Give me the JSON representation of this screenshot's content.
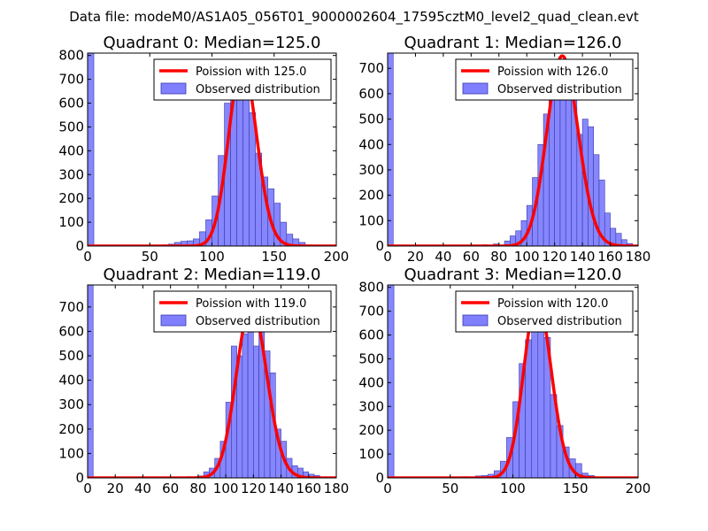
{
  "suptitle": "Data file: modeM0/AS1A05_056T01_9000002604_17595cztM0_level2_quad_clean.evt",
  "colors": {
    "bars": "#7f7fff",
    "bar_edge": "#3a3aa8",
    "fit": "#ff0000",
    "axes": "#000000",
    "background": "#ffffff"
  },
  "legend_hist_label": "Observed distribution",
  "chart_data": [
    {
      "type": "bar",
      "title": "Quadrant 0: Median=125.0",
      "fit_label": "Poission with 125.0",
      "median": 125.0,
      "xlim": [
        0,
        200
      ],
      "ylim": [
        0,
        810
      ],
      "xticks": [
        0,
        50,
        100,
        150,
        200
      ],
      "yticks": [
        0,
        100,
        200,
        300,
        400,
        500,
        600,
        700,
        800
      ],
      "bin_width": 5,
      "bins": [
        {
          "x": 0,
          "y": 810
        },
        {
          "x": 60,
          "y": 5
        },
        {
          "x": 65,
          "y": 8
        },
        {
          "x": 70,
          "y": 15
        },
        {
          "x": 75,
          "y": 20
        },
        {
          "x": 80,
          "y": 22
        },
        {
          "x": 85,
          "y": 30
        },
        {
          "x": 90,
          "y": 60
        },
        {
          "x": 95,
          "y": 110
        },
        {
          "x": 100,
          "y": 210
        },
        {
          "x": 105,
          "y": 380
        },
        {
          "x": 110,
          "y": 600
        },
        {
          "x": 115,
          "y": 700
        },
        {
          "x": 120,
          "y": 680
        },
        {
          "x": 125,
          "y": 740
        },
        {
          "x": 130,
          "y": 560
        },
        {
          "x": 135,
          "y": 390
        },
        {
          "x": 140,
          "y": 290
        },
        {
          "x": 145,
          "y": 240
        },
        {
          "x": 150,
          "y": 180
        },
        {
          "x": 155,
          "y": 100
        },
        {
          "x": 160,
          "y": 50
        },
        {
          "x": 165,
          "y": 30
        },
        {
          "x": 170,
          "y": 15
        },
        {
          "x": 175,
          "y": 5
        }
      ]
    },
    {
      "type": "bar",
      "title": "Quadrant 1: Median=126.0",
      "fit_label": "Poission with 126.0",
      "median": 126.0,
      "xlim": [
        0,
        180
      ],
      "ylim": [
        0,
        760
      ],
      "xticks": [
        0,
        20,
        40,
        60,
        80,
        100,
        120,
        140,
        160,
        180
      ],
      "yticks": [
        0,
        100,
        200,
        300,
        400,
        500,
        600,
        700
      ],
      "bin_width": 4,
      "bins": [
        {
          "x": 0,
          "y": 760
        },
        {
          "x": 68,
          "y": 5
        },
        {
          "x": 76,
          "y": 8
        },
        {
          "x": 84,
          "y": 20
        },
        {
          "x": 88,
          "y": 40
        },
        {
          "x": 92,
          "y": 60
        },
        {
          "x": 96,
          "y": 100
        },
        {
          "x": 100,
          "y": 160
        },
        {
          "x": 104,
          "y": 270
        },
        {
          "x": 108,
          "y": 400
        },
        {
          "x": 112,
          "y": 520
        },
        {
          "x": 116,
          "y": 600
        },
        {
          "x": 120,
          "y": 610
        },
        {
          "x": 124,
          "y": 720
        },
        {
          "x": 128,
          "y": 690
        },
        {
          "x": 132,
          "y": 650
        },
        {
          "x": 136,
          "y": 440
        },
        {
          "x": 140,
          "y": 500
        },
        {
          "x": 144,
          "y": 470
        },
        {
          "x": 148,
          "y": 360
        },
        {
          "x": 152,
          "y": 260
        },
        {
          "x": 156,
          "y": 130
        },
        {
          "x": 160,
          "y": 70
        },
        {
          "x": 164,
          "y": 50
        },
        {
          "x": 168,
          "y": 25
        },
        {
          "x": 172,
          "y": 10
        }
      ]
    },
    {
      "type": "bar",
      "title": "Quadrant 2: Median=119.0",
      "fit_label": "Poission with 119.0",
      "median": 119.0,
      "xlim": [
        0,
        180
      ],
      "ylim": [
        0,
        790
      ],
      "xticks": [
        0,
        20,
        40,
        60,
        80,
        100,
        120,
        140,
        160,
        180
      ],
      "yticks": [
        0,
        100,
        200,
        300,
        400,
        500,
        600,
        700
      ],
      "bin_width": 4,
      "bins": [
        {
          "x": 0,
          "y": 790
        },
        {
          "x": 72,
          "y": 5
        },
        {
          "x": 80,
          "y": 8
        },
        {
          "x": 84,
          "y": 25
        },
        {
          "x": 88,
          "y": 40
        },
        {
          "x": 92,
          "y": 80
        },
        {
          "x": 96,
          "y": 150
        },
        {
          "x": 100,
          "y": 310
        },
        {
          "x": 104,
          "y": 540
        },
        {
          "x": 108,
          "y": 500
        },
        {
          "x": 112,
          "y": 590
        },
        {
          "x": 116,
          "y": 680
        },
        {
          "x": 120,
          "y": 540
        },
        {
          "x": 124,
          "y": 600
        },
        {
          "x": 128,
          "y": 520
        },
        {
          "x": 132,
          "y": 430
        },
        {
          "x": 136,
          "y": 200
        },
        {
          "x": 140,
          "y": 150
        },
        {
          "x": 144,
          "y": 80
        },
        {
          "x": 148,
          "y": 50
        },
        {
          "x": 152,
          "y": 40
        },
        {
          "x": 156,
          "y": 25
        },
        {
          "x": 160,
          "y": 15
        },
        {
          "x": 164,
          "y": 10
        }
      ]
    },
    {
      "type": "bar",
      "title": "Quadrant 3: Median=120.0",
      "fit_label": "Poission with 120.0",
      "median": 120.0,
      "xlim": [
        0,
        200
      ],
      "ylim": [
        0,
        810
      ],
      "xticks": [
        0,
        50,
        100,
        150,
        200
      ],
      "yticks": [
        0,
        100,
        200,
        300,
        400,
        500,
        600,
        700,
        800
      ],
      "bin_width": 5,
      "bins": [
        {
          "x": 0,
          "y": 810
        },
        {
          "x": 60,
          "y": 5
        },
        {
          "x": 70,
          "y": 8
        },
        {
          "x": 75,
          "y": 10
        },
        {
          "x": 80,
          "y": 15
        },
        {
          "x": 85,
          "y": 30
        },
        {
          "x": 90,
          "y": 70
        },
        {
          "x": 95,
          "y": 170
        },
        {
          "x": 100,
          "y": 320
        },
        {
          "x": 105,
          "y": 480
        },
        {
          "x": 110,
          "y": 580
        },
        {
          "x": 115,
          "y": 680
        },
        {
          "x": 120,
          "y": 720
        },
        {
          "x": 125,
          "y": 590
        },
        {
          "x": 130,
          "y": 350
        },
        {
          "x": 135,
          "y": 220
        },
        {
          "x": 140,
          "y": 130
        },
        {
          "x": 145,
          "y": 80
        },
        {
          "x": 150,
          "y": 60
        },
        {
          "x": 155,
          "y": 20
        },
        {
          "x": 160,
          "y": 10
        }
      ]
    }
  ]
}
